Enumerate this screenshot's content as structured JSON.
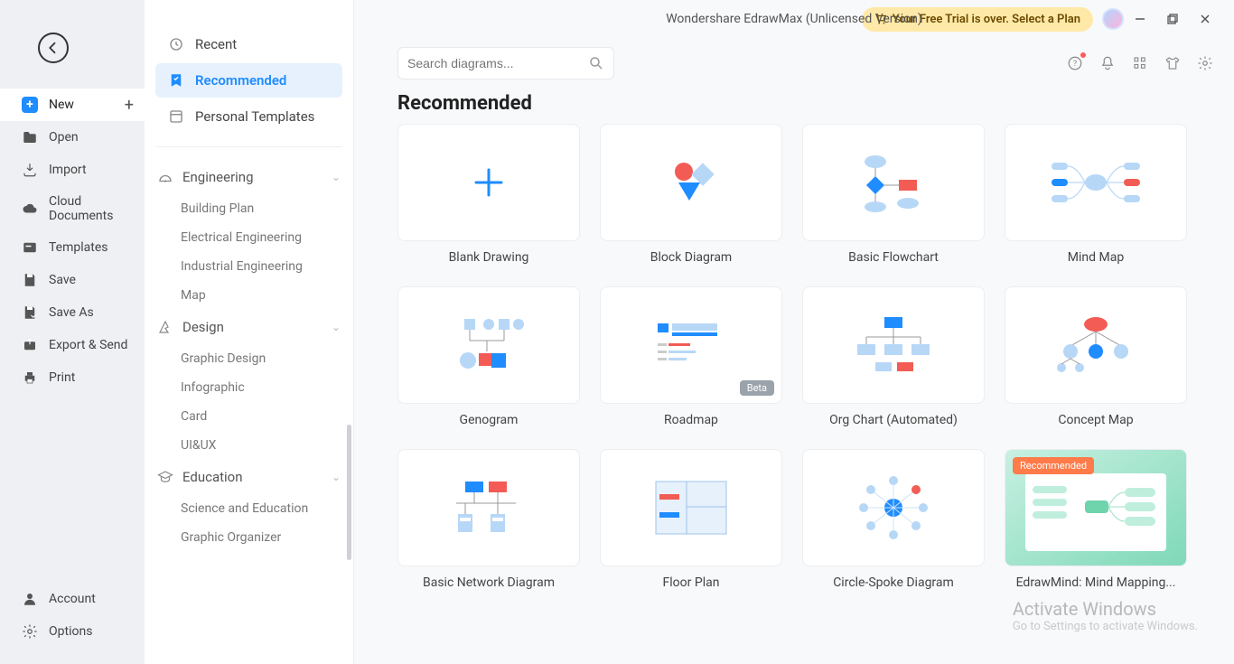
{
  "title": "Wondershare EdrawMax (Unlicensed Version)",
  "trial_text": "Your Free Trial is over. Select a Plan",
  "search_placeholder": "Search diagrams...",
  "section_heading": "Recommended",
  "colors": {
    "accent": "#1f8cff",
    "card_border": "#eceef0",
    "blue": "#1f8cff",
    "lightblue": "#b7d7f7",
    "red": "#f25c54",
    "teal": "#21c09b",
    "bg": "#f8f9fb"
  },
  "sidebar1": [
    {
      "key": "new",
      "label": "New",
      "active": true,
      "plus": true
    },
    {
      "key": "open",
      "label": "Open"
    },
    {
      "key": "import",
      "label": "Import"
    },
    {
      "key": "cloud",
      "label": "Cloud Documents"
    },
    {
      "key": "templates",
      "label": "Templates"
    },
    {
      "key": "save",
      "label": "Save"
    },
    {
      "key": "saveas",
      "label": "Save As"
    },
    {
      "key": "export",
      "label": "Export & Send"
    },
    {
      "key": "print",
      "label": "Print"
    }
  ],
  "sidebar1_bottom": [
    {
      "key": "account",
      "label": "Account"
    },
    {
      "key": "options",
      "label": "Options"
    }
  ],
  "sidebar2_top": [
    {
      "key": "recent",
      "label": "Recent"
    },
    {
      "key": "recommended",
      "label": "Recommended",
      "active": true
    },
    {
      "key": "personal",
      "label": "Personal Templates"
    }
  ],
  "sidebar2_categories": [
    {
      "key": "engineering",
      "label": "Engineering",
      "items": [
        "Building Plan",
        "Electrical Engineering",
        "Industrial Engineering",
        "Map"
      ]
    },
    {
      "key": "design",
      "label": "Design",
      "items": [
        "Graphic Design",
        "Infographic",
        "Card",
        "UI&UX"
      ]
    },
    {
      "key": "education",
      "label": "Education",
      "items": [
        "Science and Education",
        "Graphic Organizer"
      ]
    }
  ],
  "templates": [
    {
      "key": "blank",
      "label": "Blank Drawing"
    },
    {
      "key": "block",
      "label": "Block Diagram"
    },
    {
      "key": "flowchart",
      "label": "Basic Flowchart"
    },
    {
      "key": "mindmap",
      "label": "Mind Map"
    },
    {
      "key": "genogram",
      "label": "Genogram"
    },
    {
      "key": "roadmap",
      "label": "Roadmap",
      "badge": "Beta"
    },
    {
      "key": "orgchart",
      "label": "Org Chart (Automated)"
    },
    {
      "key": "concept",
      "label": "Concept Map"
    },
    {
      "key": "network",
      "label": "Basic Network Diagram"
    },
    {
      "key": "floorplan",
      "label": "Floor Plan"
    },
    {
      "key": "circlespoke",
      "label": "Circle-Spoke Diagram"
    },
    {
      "key": "edrawmind",
      "label": "EdrawMind: Mind Mapping...",
      "recommended": "Recommended"
    }
  ],
  "watermark": {
    "l1": "Activate Windows",
    "l2": "Go to Settings to activate Windows."
  }
}
